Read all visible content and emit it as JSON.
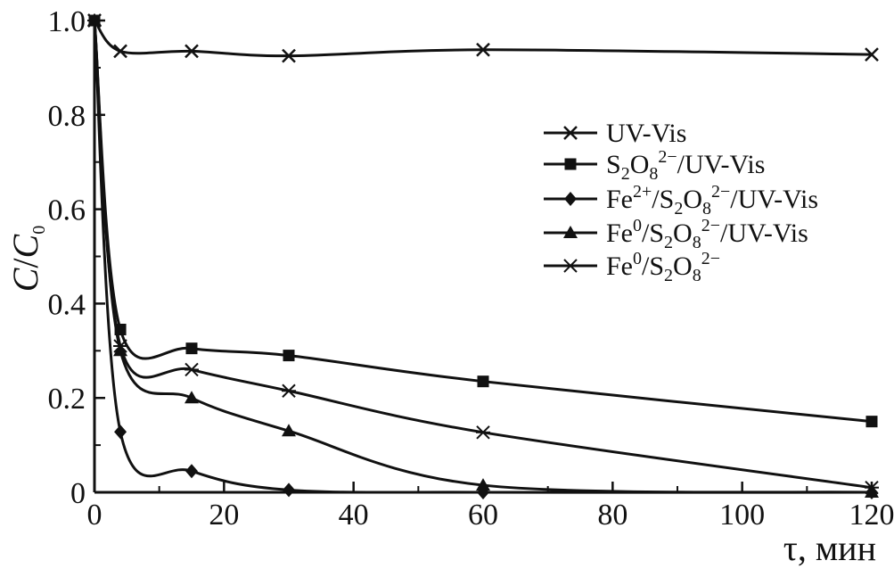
{
  "chart_data": {
    "type": "line",
    "title": "",
    "xlabel": "τ, мин",
    "ylabel": "C/C0",
    "xlim": [
      0,
      120
    ],
    "ylim": [
      0,
      1.0
    ],
    "x_ticks": [
      "0",
      "20",
      "40",
      "60",
      "80",
      "100",
      "120"
    ],
    "y_ticks": [
      "0",
      "0.2",
      "0.4",
      "0.6",
      "0.8",
      "1.0"
    ],
    "grid": false,
    "legend_position": "right",
    "x": [
      0,
      4,
      15,
      30,
      60,
      120
    ],
    "series": [
      {
        "name": "UV-Vis",
        "marker": "x",
        "values": [
          1.0,
          0.935,
          0.935,
          0.925,
          0.938,
          0.928
        ]
      },
      {
        "name": "S2O8 2−/UV-Vis",
        "marker": "square",
        "values": [
          1.0,
          0.345,
          0.305,
          0.29,
          0.235,
          0.15
        ]
      },
      {
        "name": "Fe2+/S2O8 2−/UV-Vis",
        "marker": "diamond",
        "values": [
          1.0,
          0.128,
          0.045,
          0.005,
          0.0,
          0.0
        ]
      },
      {
        "name": "Fe0/S2O8 2−/UV-Vis",
        "marker": "triangle",
        "values": [
          1.0,
          0.3,
          0.2,
          0.13,
          0.015,
          0.0
        ]
      },
      {
        "name": "Fe0/S2O8 2−",
        "marker": "asterisk",
        "values": [
          1.0,
          0.31,
          0.26,
          0.215,
          0.127,
          0.01
        ]
      }
    ]
  }
}
